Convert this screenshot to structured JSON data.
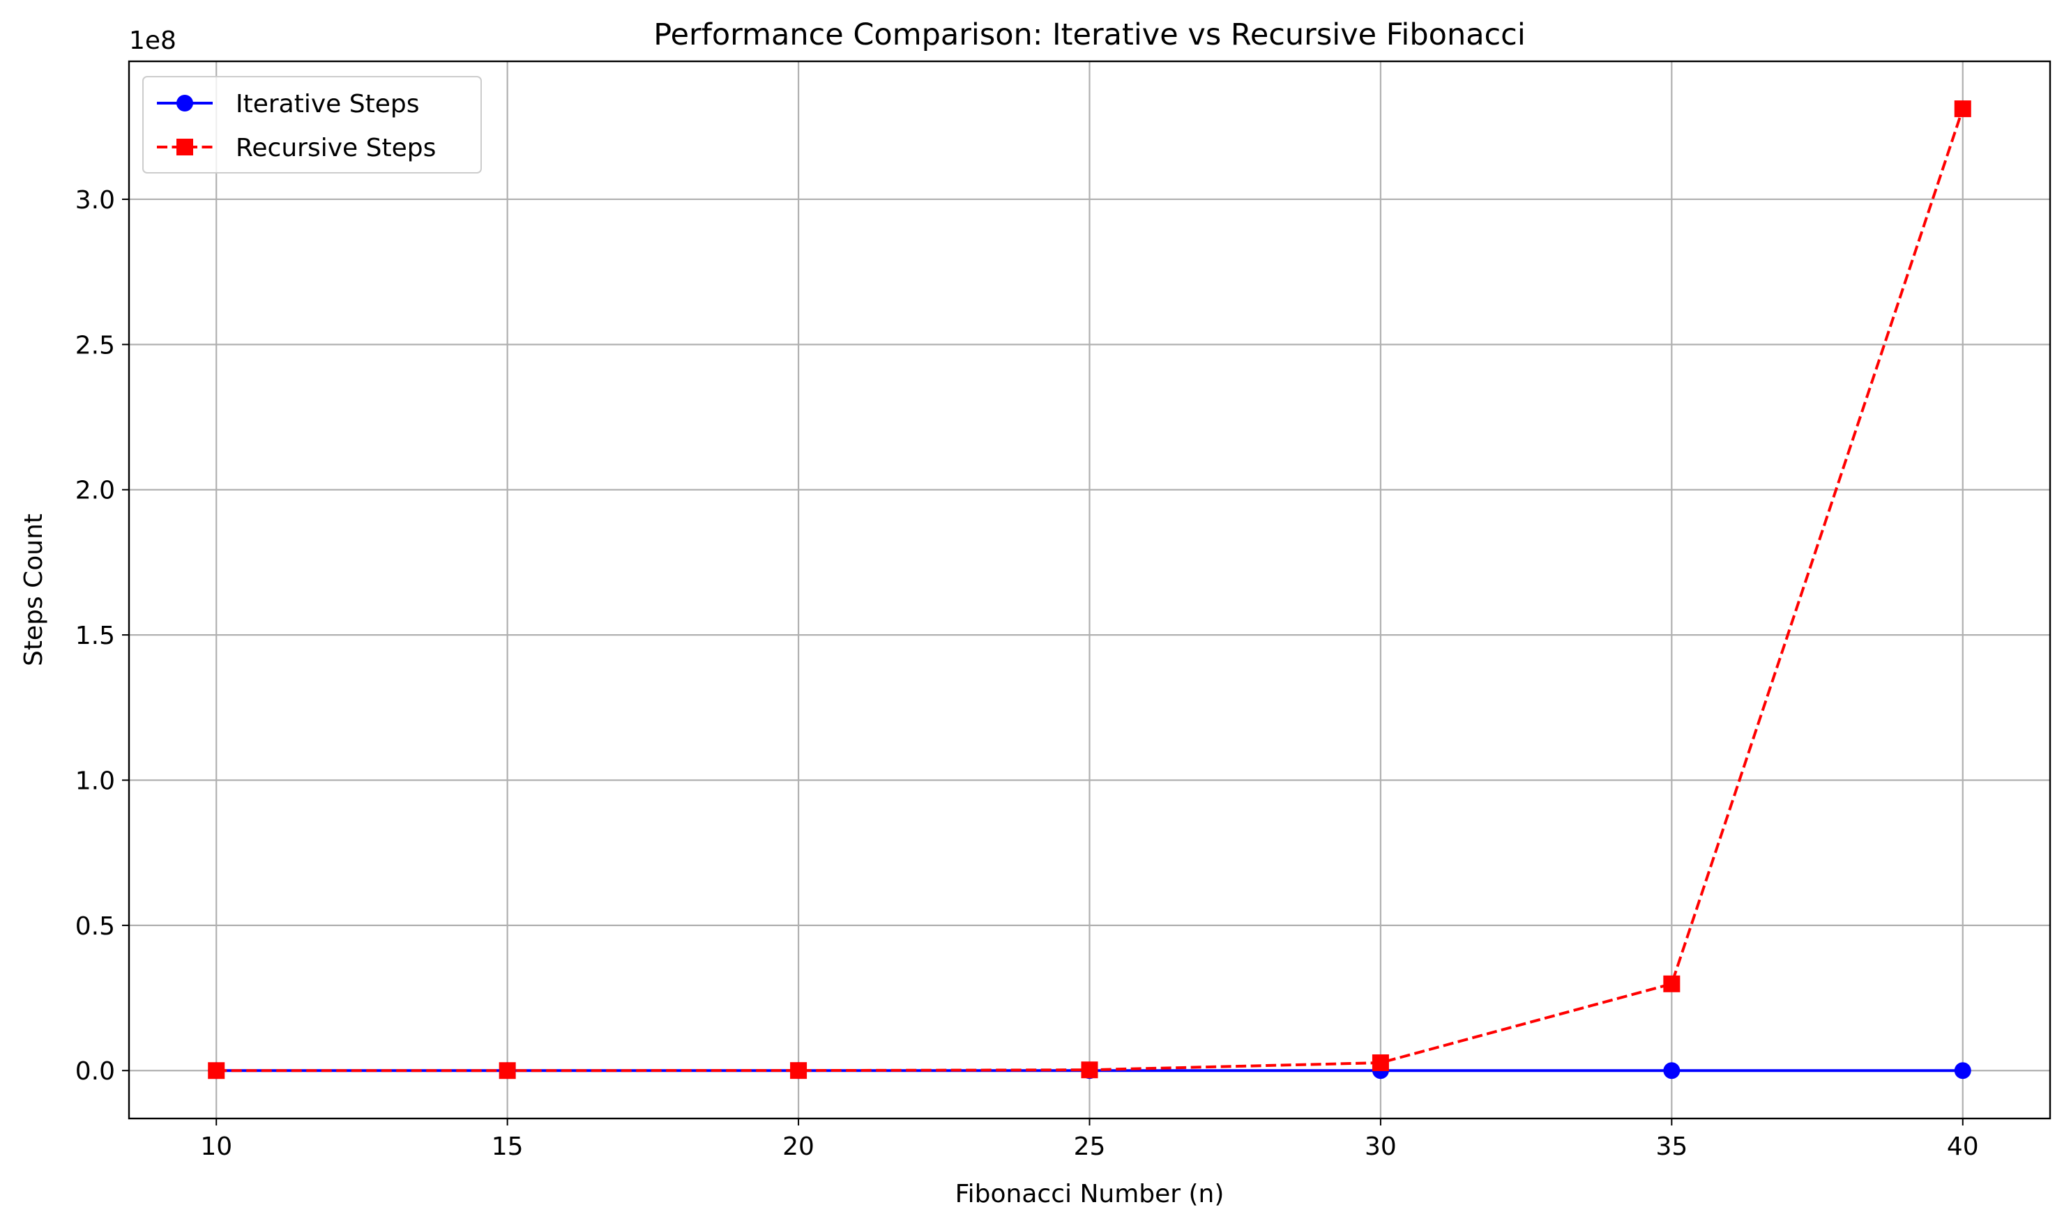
{
  "chart_data": {
    "type": "line",
    "title": "Performance Comparison: Iterative vs Recursive Fibonacci",
    "xlabel": "Fibonacci Number (n)",
    "ylabel": "Steps Count",
    "y_offset_label": "1e8",
    "x": [
      10,
      15,
      20,
      25,
      30,
      35,
      40
    ],
    "x_tick_labels": [
      "10",
      "15",
      "20",
      "25",
      "30",
      "35",
      "40"
    ],
    "y_ticks": [
      0.0,
      0.5,
      1.0,
      1.5,
      2.0,
      2.5,
      3.0
    ],
    "y_tick_labels": [
      "0.0",
      "0.5",
      "1.0",
      "1.5",
      "2.0",
      "2.5",
      "3.0"
    ],
    "y_scale": 100000000,
    "xlim": [
      8.5,
      41.5
    ],
    "ylim": [
      -16500000,
      347500000
    ],
    "grid": true,
    "legend_position": "upper-left",
    "series": [
      {
        "name": "Iterative Steps",
        "values": [
          10,
          15,
          20,
          25,
          30,
          35,
          40
        ],
        "color": "#0000ff",
        "marker": "circle",
        "line_style": "solid"
      },
      {
        "name": "Recursive Steps",
        "values": [
          177,
          1973,
          21891,
          242785,
          2692537,
          29860703,
          331160281
        ],
        "color": "#ff0000",
        "marker": "square",
        "line_style": "dashed"
      }
    ]
  }
}
